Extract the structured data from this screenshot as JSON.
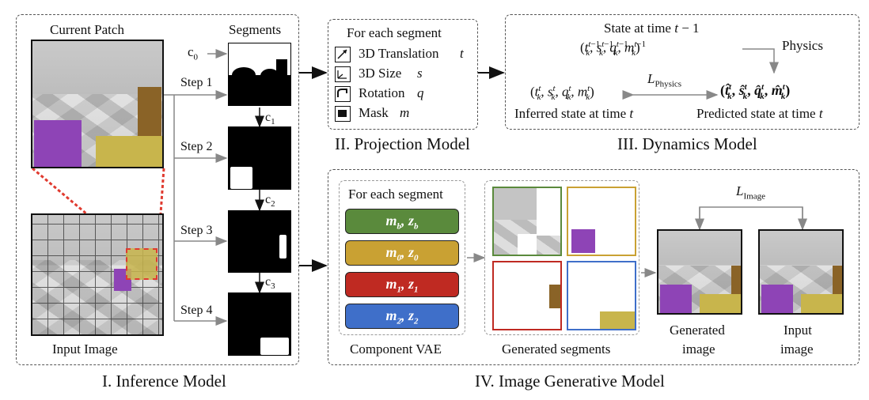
{
  "inference": {
    "caption": "I. Inference Model",
    "current_patch_label": "Current Patch",
    "segments_label": "Segments",
    "input_image_label": "Input Image",
    "c0": "c",
    "c0_sub": "0",
    "steps": [
      {
        "label": "Step 1",
        "c": "c",
        "c_sub": "1"
      },
      {
        "label": "Step 2",
        "c": "c",
        "c_sub": "2"
      },
      {
        "label": "Step 3",
        "c": "c",
        "c_sub": "3"
      },
      {
        "label": "Step 4",
        "c": "",
        "c_sub": ""
      }
    ]
  },
  "projection": {
    "caption": "II. Projection Model",
    "header": "For each segment",
    "items": [
      {
        "icon": "translation-arrow-icon",
        "label": "3D Translation",
        "var": "t"
      },
      {
        "icon": "size-axes-icon",
        "label": "3D Size",
        "var": "s"
      },
      {
        "icon": "rotation-arc-icon",
        "label": "Rotation",
        "var": "q"
      },
      {
        "icon": "mask-square-icon",
        "label": "Mask",
        "var": "m"
      }
    ]
  },
  "dynamics": {
    "caption": "III. Dynamics Model",
    "state_prev_label": "State at time t − 1",
    "state_prev_tuple": "(t",
    "physics_label": "Physics",
    "loss_label": "L",
    "loss_sub": "Physics",
    "inferred_label": "Inferred state at time t",
    "predicted_label": "Predicted state at time t"
  },
  "generative": {
    "caption": "IV. Image Generative Model",
    "vae_header": "For each segment",
    "components": [
      {
        "m": "m",
        "m_sub": "b",
        "z": "z",
        "z_sub": "b",
        "color": "#5a8a3c"
      },
      {
        "m": "m",
        "m_sub": "0",
        "z": "z",
        "z_sub": "0",
        "color": "#c9a133"
      },
      {
        "m": "m",
        "m_sub": "1",
        "z": "z",
        "z_sub": "1",
        "color": "#bf2a22"
      },
      {
        "m": "m",
        "m_sub": "2",
        "z": "z",
        "z_sub": "2",
        "color": "#3f6fc9"
      }
    ],
    "vae_label": "Component VAE",
    "generated_segments_label": "Generated segments",
    "segment_border_colors": [
      "#5a8a3c",
      "#c9a133",
      "#bf2a22",
      "#3f6fc9"
    ],
    "loss_label": "L",
    "loss_sub": "Image",
    "generated_image_label_1": "Generated",
    "generated_image_label_2": "image",
    "input_image_label_1": "Input",
    "input_image_label_2": "image"
  }
}
